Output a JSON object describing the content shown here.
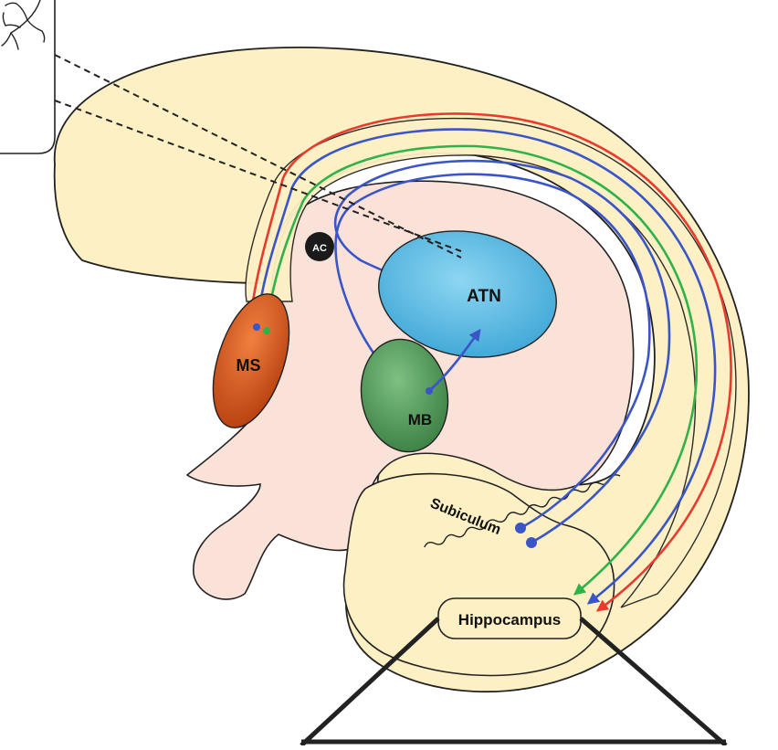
{
  "labels": {
    "ms": "MS",
    "atn": "ATN",
    "mb": "MB",
    "ac": "AC",
    "subiculum": "Subiculum",
    "hippocampus": "Hippocampus"
  },
  "colors": {
    "brain_fill": "#fdf0c4",
    "thalamus_fill": "#fbe2d8",
    "outline": "#222222",
    "ms_fill": "#d4531c",
    "atn_fill": "#55b8e0",
    "mb_fill": "#4f9a55",
    "ac_fill": "#1a1a1a",
    "tract_red": "#e83a2e",
    "tract_blue": "#3a55c8",
    "tract_green": "#2fb24a"
  }
}
